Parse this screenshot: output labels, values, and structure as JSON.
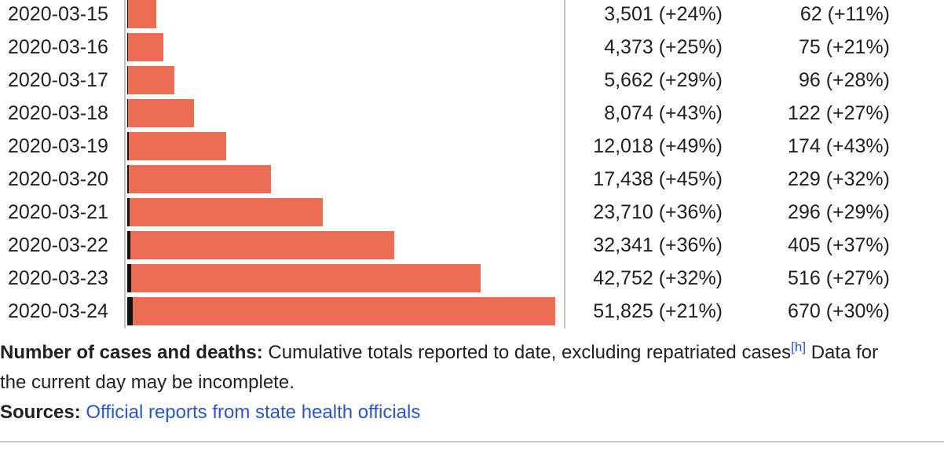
{
  "colors": {
    "bar_cases": "#EC6E52",
    "bar_deaths": "#111111",
    "axis_line": "#c2c2c2",
    "rule": "#c9cdd1",
    "link": "#2b55c8",
    "text": "#202122"
  },
  "chart_data": {
    "type": "bar",
    "orientation": "horizontal",
    "scale": "linear",
    "grid": false,
    "xlim": [
      0,
      51825
    ],
    "categories": [
      "2020-03-15",
      "2020-03-16",
      "2020-03-17",
      "2020-03-18",
      "2020-03-19",
      "2020-03-20",
      "2020-03-21",
      "2020-03-22",
      "2020-03-23",
      "2020-03-24"
    ],
    "series": [
      {
        "name": "Cases",
        "color": "#EC6E52",
        "values": [
          3501,
          4373,
          5662,
          8074,
          12018,
          17438,
          23710,
          32341,
          42752,
          51825
        ]
      },
      {
        "name": "Deaths",
        "color": "#111111",
        "values": [
          62,
          75,
          96,
          122,
          174,
          229,
          296,
          405,
          516,
          670
        ]
      }
    ]
  },
  "table": {
    "rows": [
      {
        "date": "2020-03-15",
        "cases": 3501,
        "deaths": 62,
        "cases_label": "3,501 (+24%)",
        "deaths_label": "62 (+11%)"
      },
      {
        "date": "2020-03-16",
        "cases": 4373,
        "deaths": 75,
        "cases_label": "4,373 (+25%)",
        "deaths_label": "75 (+21%)"
      },
      {
        "date": "2020-03-17",
        "cases": 5662,
        "deaths": 96,
        "cases_label": "5,662 (+29%)",
        "deaths_label": "96 (+28%)"
      },
      {
        "date": "2020-03-18",
        "cases": 8074,
        "deaths": 122,
        "cases_label": "8,074 (+43%)",
        "deaths_label": "122 (+27%)"
      },
      {
        "date": "2020-03-19",
        "cases": 12018,
        "deaths": 174,
        "cases_label": "12,018 (+49%)",
        "deaths_label": "174 (+43%)"
      },
      {
        "date": "2020-03-20",
        "cases": 17438,
        "deaths": 229,
        "cases_label": "17,438 (+45%)",
        "deaths_label": "229 (+32%)"
      },
      {
        "date": "2020-03-21",
        "cases": 23710,
        "deaths": 296,
        "cases_label": "23,710 (+36%)",
        "deaths_label": "296 (+29%)"
      },
      {
        "date": "2020-03-22",
        "cases": 32341,
        "deaths": 405,
        "cases_label": "32,341 (+36%)",
        "deaths_label": "405 (+37%)"
      },
      {
        "date": "2020-03-23",
        "cases": 42752,
        "deaths": 516,
        "cases_label": "42,752 (+32%)",
        "deaths_label": "516 (+27%)"
      },
      {
        "date": "2020-03-24",
        "cases": 51825,
        "deaths": 670,
        "cases_label": "51,825 (+21%)",
        "deaths_label": "670 (+30%)"
      }
    ]
  },
  "caption": {
    "line1_bold": "Number of cases and deaths:",
    "line1_text": " Cumulative totals reported to date, excluding repatriated cases",
    "footnote_ref": "[h]",
    "line1_tail": " Data for",
    "line2": "the current day may be incomplete."
  },
  "sources": {
    "label": "Sources:",
    "link_text": "Official reports from state health officials"
  }
}
